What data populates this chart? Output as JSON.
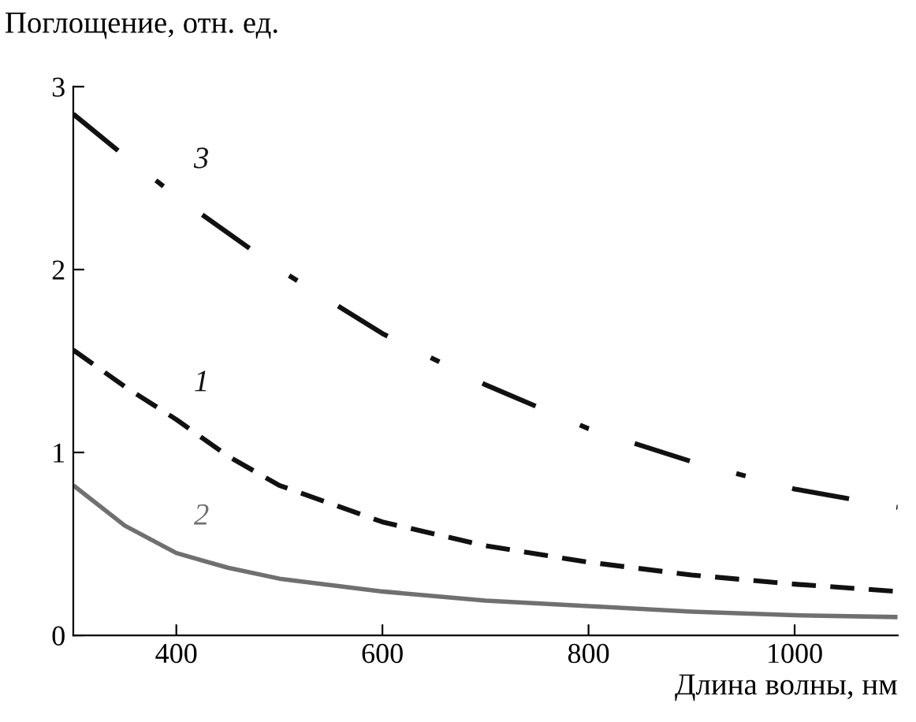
{
  "chart_data": {
    "type": "line",
    "ylabel": "Поглощение, отн. ед.",
    "xlabel": "Длина волны, нм",
    "x": [
      300,
      350,
      400,
      450,
      500,
      600,
      700,
      800,
      900,
      1000,
      1100
    ],
    "xlim": [
      300,
      1100
    ],
    "xticks": [
      400,
      600,
      800,
      1000
    ],
    "ylim": [
      0,
      3
    ],
    "yticks": [
      0,
      1,
      2,
      3
    ],
    "grid": false,
    "legend": false,
    "series": [
      {
        "name": "1",
        "color": "#111111",
        "line_style": "dashed",
        "values": [
          1.56,
          1.36,
          1.18,
          0.98,
          0.82,
          0.62,
          0.49,
          0.4,
          0.33,
          0.28,
          0.24
        ]
      },
      {
        "name": "2",
        "color": "#707070",
        "line_style": "solid",
        "values": [
          0.82,
          0.6,
          0.45,
          0.37,
          0.31,
          0.24,
          0.19,
          0.16,
          0.13,
          0.11,
          0.1
        ]
      },
      {
        "name": "3",
        "color": "#111111",
        "line_style": "dashdot",
        "values": [
          2.85,
          2.62,
          2.4,
          2.2,
          2.0,
          1.65,
          1.37,
          1.13,
          0.95,
          0.8,
          0.7
        ]
      }
    ]
  }
}
